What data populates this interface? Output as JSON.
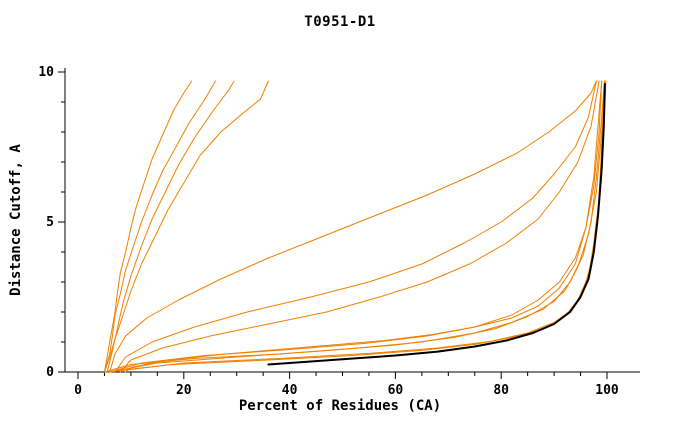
{
  "title": "T0951-D1",
  "axes": {
    "x_label": "Percent of Residues (CA)",
    "y_label": "Distance Cutoff, A",
    "x_ticks": [
      0,
      20,
      40,
      60,
      80,
      100
    ],
    "x_minor_step": 5,
    "y_ticks": [
      0,
      5,
      10
    ],
    "y_minor_step": 1
  },
  "colors": {
    "model_line": "#F08000",
    "reference_line": "#000000",
    "axis": "#000000"
  },
  "chart_data": {
    "type": "line",
    "title": "T0951-D1",
    "xlabel": "Percent of Residues (CA)",
    "ylabel": "Distance Cutoff, A",
    "xlim": [
      0,
      100
    ],
    "ylim": [
      0,
      10
    ],
    "grid": false,
    "legend": "none",
    "series": [
      {
        "name": "model-1",
        "color": "#F08000",
        "width": 1,
        "points": [
          [
            5,
            0
          ],
          [
            5.5,
            0.5
          ],
          [
            6,
            1
          ],
          [
            6.5,
            1.5
          ],
          [
            7,
            2
          ],
          [
            7.5,
            2.7
          ],
          [
            8,
            3.3
          ],
          [
            9,
            4
          ],
          [
            10,
            4.8
          ],
          [
            11,
            5.5
          ],
          [
            12.5,
            6.3
          ],
          [
            14,
            7.1
          ],
          [
            16,
            7.9
          ],
          [
            18,
            8.7
          ],
          [
            20,
            9.3
          ],
          [
            21.5,
            9.7
          ]
        ]
      },
      {
        "name": "model-2",
        "color": "#F08000",
        "width": 1,
        "points": [
          [
            5,
            0
          ],
          [
            6,
            0.6
          ],
          [
            6.5,
            1.2
          ],
          [
            7,
            1.9
          ],
          [
            8,
            2.6
          ],
          [
            9,
            3.4
          ],
          [
            10.5,
            4.2
          ],
          [
            12,
            5
          ],
          [
            14,
            5.9
          ],
          [
            16,
            6.7
          ],
          [
            18.5,
            7.5
          ],
          [
            21,
            8.3
          ],
          [
            24,
            9.1
          ],
          [
            26,
            9.7
          ]
        ]
      },
      {
        "name": "model-3",
        "color": "#F08000",
        "width": 1,
        "points": [
          [
            5.5,
            0
          ],
          [
            6.5,
            0.7
          ],
          [
            7.5,
            1.5
          ],
          [
            8.5,
            2.3
          ],
          [
            10,
            3.2
          ],
          [
            12,
            4.2
          ],
          [
            14,
            5.1
          ],
          [
            16.5,
            6
          ],
          [
            19,
            6.9
          ],
          [
            22,
            7.8
          ],
          [
            25.5,
            8.7
          ],
          [
            28.5,
            9.4
          ],
          [
            29.5,
            9.7
          ]
        ]
      },
      {
        "name": "model-4",
        "color": "#F08000",
        "width": 1,
        "points": [
          [
            5,
            0
          ],
          [
            6,
            0.5
          ],
          [
            7,
            1.1
          ],
          [
            8.5,
            1.9
          ],
          [
            10,
            2.7
          ],
          [
            12,
            3.6
          ],
          [
            14.5,
            4.5
          ],
          [
            17,
            5.4
          ],
          [
            20,
            6.3
          ],
          [
            23,
            7.2
          ],
          [
            27,
            8
          ],
          [
            31,
            8.6
          ],
          [
            34.5,
            9.1
          ],
          [
            36,
            9.7
          ]
        ]
      },
      {
        "name": "model-5",
        "color": "#F08000",
        "width": 1,
        "points": [
          [
            6,
            0
          ],
          [
            7,
            0.6
          ],
          [
            9,
            1.2
          ],
          [
            13,
            1.8
          ],
          [
            19,
            2.4
          ],
          [
            27,
            3.1
          ],
          [
            36,
            3.8
          ],
          [
            46,
            4.5
          ],
          [
            56,
            5.2
          ],
          [
            66,
            5.9
          ],
          [
            75,
            6.6
          ],
          [
            83,
            7.3
          ],
          [
            89,
            8
          ],
          [
            94,
            8.7
          ],
          [
            97,
            9.3
          ],
          [
            98,
            9.7
          ]
        ]
      },
      {
        "name": "model-6",
        "color": "#F08000",
        "width": 1,
        "points": [
          [
            7,
            0
          ],
          [
            9,
            0.5
          ],
          [
            14,
            1
          ],
          [
            22,
            1.5
          ],
          [
            32,
            2
          ],
          [
            44,
            2.5
          ],
          [
            55,
            3
          ],
          [
            65,
            3.6
          ],
          [
            73,
            4.3
          ],
          [
            80,
            5
          ],
          [
            86,
            5.8
          ],
          [
            90,
            6.6
          ],
          [
            94,
            7.5
          ],
          [
            96.5,
            8.5
          ],
          [
            98,
            9.7
          ]
        ]
      },
      {
        "name": "model-7",
        "color": "#F08000",
        "width": 1,
        "points": [
          [
            8,
            0
          ],
          [
            10,
            0.4
          ],
          [
            16,
            0.8
          ],
          [
            25,
            1.2
          ],
          [
            36,
            1.6
          ],
          [
            47,
            2
          ],
          [
            57,
            2.5
          ],
          [
            66,
            3
          ],
          [
            74,
            3.6
          ],
          [
            81,
            4.3
          ],
          [
            87,
            5.1
          ],
          [
            91,
            6
          ],
          [
            94.5,
            7
          ],
          [
            97,
            8.2
          ],
          [
            98.5,
            9.7
          ]
        ]
      },
      {
        "name": "model-8",
        "color": "#F08000",
        "width": 1,
        "points": [
          [
            6,
            0
          ],
          [
            12,
            0.3
          ],
          [
            24,
            0.55
          ],
          [
            40,
            0.75
          ],
          [
            54,
            0.95
          ],
          [
            66,
            1.2
          ],
          [
            75,
            1.5
          ],
          [
            82,
            1.9
          ],
          [
            87,
            2.4
          ],
          [
            91,
            3
          ],
          [
            94,
            3.8
          ],
          [
            96,
            4.8
          ],
          [
            97.5,
            6.2
          ],
          [
            98.5,
            8
          ],
          [
            99,
            9.7
          ]
        ]
      },
      {
        "name": "model-9",
        "color": "#F08000",
        "width": 1,
        "points": [
          [
            5,
            0
          ],
          [
            10,
            0.25
          ],
          [
            22,
            0.45
          ],
          [
            38,
            0.6
          ],
          [
            53,
            0.8
          ],
          [
            65,
            1
          ],
          [
            75,
            1.3
          ],
          [
            82,
            1.65
          ],
          [
            88,
            2.1
          ],
          [
            92,
            2.7
          ],
          [
            94.5,
            3.5
          ],
          [
            96.5,
            4.6
          ],
          [
            98,
            6
          ],
          [
            99,
            8
          ],
          [
            99.5,
            9.7
          ]
        ]
      },
      {
        "name": "model-10",
        "color": "#F08000",
        "width": 1,
        "points": [
          [
            6,
            0
          ],
          [
            15,
            0.3
          ],
          [
            30,
            0.5
          ],
          [
            46,
            0.7
          ],
          [
            60,
            0.9
          ],
          [
            71,
            1.15
          ],
          [
            79,
            1.45
          ],
          [
            85,
            1.85
          ],
          [
            90,
            2.35
          ],
          [
            93,
            3
          ],
          [
            95.5,
            3.9
          ],
          [
            97,
            5
          ],
          [
            98,
            6.5
          ],
          [
            99,
            8.5
          ],
          [
            99.5,
            9.7
          ]
        ]
      },
      {
        "name": "model-11",
        "color": "#F08000",
        "width": 1,
        "points": [
          [
            5,
            0
          ],
          [
            18,
            0.25
          ],
          [
            36,
            0.4
          ],
          [
            52,
            0.55
          ],
          [
            65,
            0.72
          ],
          [
            75,
            0.92
          ],
          [
            82,
            1.15
          ],
          [
            88,
            1.45
          ],
          [
            92,
            1.85
          ],
          [
            94.5,
            2.4
          ],
          [
            96.5,
            3.2
          ],
          [
            97.5,
            4.3
          ],
          [
            98.5,
            5.8
          ],
          [
            99,
            7.6
          ],
          [
            99.6,
            9.7
          ]
        ]
      },
      {
        "name": "model-12",
        "color": "#F08000",
        "width": 1,
        "points": [
          [
            6,
            0
          ],
          [
            20,
            0.3
          ],
          [
            38,
            0.45
          ],
          [
            55,
            0.62
          ],
          [
            68,
            0.8
          ],
          [
            78,
            1.02
          ],
          [
            85,
            1.3
          ],
          [
            90,
            1.65
          ],
          [
            93.5,
            2.1
          ],
          [
            95.5,
            2.7
          ],
          [
            97,
            3.6
          ],
          [
            98,
            4.8
          ],
          [
            99,
            6.5
          ],
          [
            99.5,
            8.5
          ],
          [
            99.8,
            9.7
          ]
        ]
      },
      {
        "name": "model-13",
        "color": "#F08000",
        "width": 1,
        "points": [
          [
            9,
            0
          ],
          [
            10,
            0.15
          ],
          [
            14,
            0.3
          ],
          [
            20,
            0.45
          ],
          [
            28,
            0.6
          ],
          [
            38,
            0.75
          ],
          [
            48,
            0.9
          ],
          [
            58,
            1.05
          ],
          [
            67,
            1.25
          ],
          [
            75,
            1.5
          ],
          [
            82,
            1.8
          ],
          [
            87,
            2.2
          ],
          [
            91,
            2.8
          ],
          [
            94,
            3.6
          ],
          [
            96,
            4.8
          ],
          [
            97.5,
            6.5
          ],
          [
            99,
            9.7
          ]
        ]
      },
      {
        "name": "reference",
        "color": "#000000",
        "width": 2,
        "points": [
          [
            36,
            0.25
          ],
          [
            44,
            0.35
          ],
          [
            52,
            0.45
          ],
          [
            60,
            0.55
          ],
          [
            68,
            0.68
          ],
          [
            75,
            0.85
          ],
          [
            81,
            1.05
          ],
          [
            86,
            1.3
          ],
          [
            90,
            1.6
          ],
          [
            93,
            2
          ],
          [
            95,
            2.5
          ],
          [
            96.5,
            3.1
          ],
          [
            97.5,
            4
          ],
          [
            98.3,
            5.2
          ],
          [
            99,
            6.8
          ],
          [
            99.4,
            8.2
          ],
          [
            99.6,
            9.6
          ]
        ]
      }
    ]
  }
}
